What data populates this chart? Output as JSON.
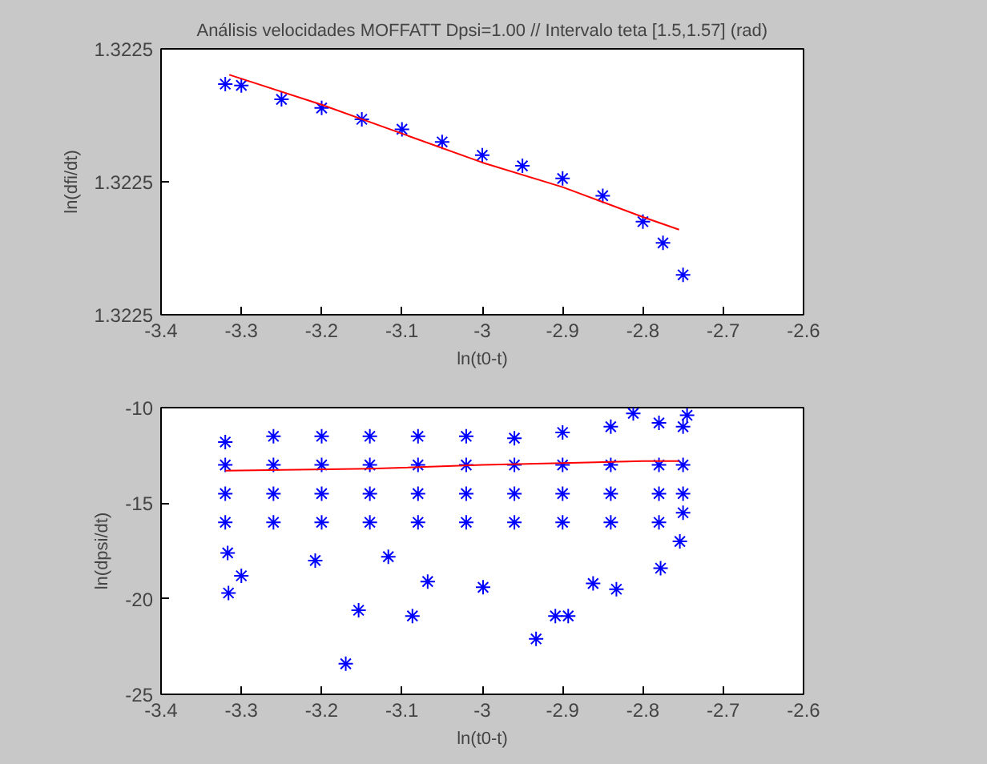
{
  "chart_data": [
    {
      "type": "scatter",
      "title": "Análisis velocidades MOFFATT Dpsi=1.00 // Intervalo teta [1.5,1.57] (rad)",
      "xlabel": "ln(t0-t)",
      "ylabel": "ln(dfi/dt)",
      "xlim": [
        -3.4,
        -2.6
      ],
      "xticks": [
        -3.4,
        -3.3,
        -3.2,
        -3.1,
        -3,
        -2.9,
        -2.8,
        -2.7,
        -2.6
      ],
      "ylim": [
        1.32248,
        1.32252
      ],
      "yticks": [
        {
          "value": 1.32248,
          "label": "1.3225"
        },
        {
          "value": 1.3225,
          "label": "1.3225"
        },
        {
          "value": 1.32252,
          "label": "1.3225"
        }
      ],
      "series": [
        {
          "marker": "cross",
          "color": "#0000ff",
          "x": [
            -3.32,
            -3.3,
            -3.25,
            -3.2,
            -3.15,
            -3.1,
            -3.05,
            -3.0,
            -2.95,
            -2.9,
            -2.85,
            -2.8,
            -2.775,
            -2.75
          ],
          "values": [
            1.3225147,
            1.3225145,
            1.3225124,
            1.3225111,
            1.3225094,
            1.3225079,
            1.322506,
            1.322504,
            1.3225024,
            1.3225005,
            1.3224979,
            1.322494,
            1.3224908,
            1.322486
          ]
        },
        {
          "type": "line",
          "color": "#ff0000",
          "x": [
            -3.315,
            -3.2,
            -3.0,
            -2.9,
            -2.8,
            -2.755
          ],
          "values": [
            1.3225161,
            1.3225116,
            1.3225029,
            1.3224992,
            1.3224947,
            1.3224928
          ]
        }
      ]
    },
    {
      "type": "scatter",
      "xlabel": "ln(t0-t)",
      "ylabel": "ln(dpsi/dt)",
      "xlim": [
        -3.4,
        -2.6
      ],
      "xticks": [
        -3.4,
        -3.3,
        -3.2,
        -3.1,
        -3,
        -2.9,
        -2.8,
        -2.7,
        -2.6
      ],
      "ylim": [
        -25,
        -10
      ],
      "yticks": [
        -25,
        -20,
        -15,
        -10
      ],
      "series": [
        {
          "marker": "cross",
          "color": "#0000ff",
          "x": [
            -3.32,
            -3.32,
            -3.32,
            -3.32,
            -3.26,
            -3.26,
            -3.26,
            -3.26,
            -3.2,
            -3.2,
            -3.2,
            -3.2,
            -3.14,
            -3.14,
            -3.14,
            -3.14,
            -3.08,
            -3.08,
            -3.08,
            -3.08,
            -3.02,
            -3.02,
            -3.02,
            -3.02,
            -2.96,
            -2.96,
            -2.96,
            -2.96,
            -2.9,
            -2.9,
            -2.9,
            -2.9,
            -2.84,
            -2.84,
            -2.84,
            -2.84,
            -2.78,
            -2.78,
            -2.78,
            -2.78,
            -2.75,
            -2.75,
            -2.75,
            -2.75,
            -3.316,
            -3.3,
            -3.317,
            -3.17,
            -3.154,
            -3.087,
            -2.999,
            -2.933,
            -2.909,
            -2.893,
            -2.833,
            -2.778,
            -2.862,
            -3.208,
            -3.117,
            -3.068,
            -2.754,
            -2.812,
            -2.745
          ],
          "values": [
            -11.8,
            -13,
            -14.5,
            -16,
            -11.5,
            -13,
            -14.5,
            -16,
            -11.5,
            -13,
            -14.5,
            -16,
            -11.5,
            -13,
            -14.5,
            -16,
            -11.5,
            -13,
            -14.5,
            -16,
            -11.5,
            -13,
            -14.5,
            -16,
            -11.6,
            -13,
            -14.5,
            -16,
            -11.3,
            -13,
            -14.5,
            -16,
            -11.0,
            -13,
            -14.5,
            -16,
            -10.8,
            -13,
            -14.5,
            -16,
            -11,
            -13,
            -14.5,
            -15.5,
            -19.7,
            -18.8,
            -17.6,
            -23.4,
            -20.6,
            -20.9,
            -19.4,
            -22.1,
            -20.9,
            -20.9,
            -19.5,
            -18.4,
            -19.2,
            -18.0,
            -17.8,
            -19.1,
            -17.0,
            -10.3,
            -10.4
          ]
        },
        {
          "type": "line",
          "color": "#ff0000",
          "x": [
            -3.32,
            -3.14,
            -3.0,
            -2.9,
            -2.8,
            -2.755
          ],
          "values": [
            -13.3,
            -13.2,
            -13.0,
            -12.9,
            -12.8,
            -12.8
          ]
        }
      ]
    }
  ]
}
